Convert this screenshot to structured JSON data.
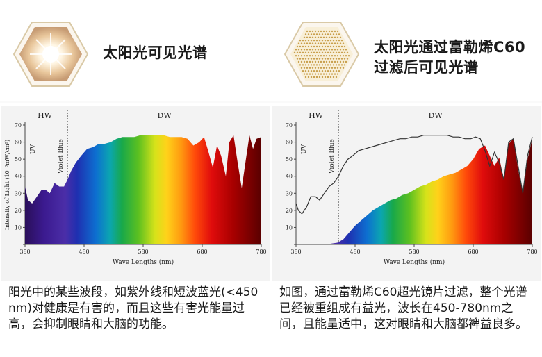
{
  "panels": [
    {
      "title_lines": [
        "太阳光可见光谱"
      ],
      "description": "阳光中的某些波段，如紫外线和短波蓝光(<450 nm)对健康是有害的，而且这些有害光能量过高，会抑制眼睛和大脑的功能。"
    },
    {
      "title_lines": [
        "太阳光通过富勒烯C60",
        "过滤后可见光谱"
      ],
      "description": "如图，通过富勒烯C60超光镜片过滤，整个光谱已经被重组成有益光，波长在450-780nm之间，且能量适中，这对眼睛和大脑都裨益良多。"
    }
  ],
  "colors": {
    "frame": "#d9c9a6",
    "chart_bg": "#f3f3f3",
    "uv_violet": "#3a1d8a",
    "red": "#8b0000"
  },
  "chart_data": [
    {
      "type": "area",
      "xlabel": "Wave Lengths (nm)",
      "ylabel": "Intensity of Light (10⁻³mW/cm²)",
      "xlim": [
        380,
        780
      ],
      "ylim": [
        0,
        70
      ],
      "x_ticks": [
        380,
        480,
        580,
        680,
        780
      ],
      "y_ticks": [
        0,
        10,
        20,
        30,
        40,
        50,
        60,
        70
      ],
      "region_labels": [
        "HW",
        "DW"
      ],
      "annotations": [
        "UV",
        "Violet Blue"
      ],
      "divider_x": 452,
      "series": [
        {
          "x": [
            380,
            385,
            392,
            400,
            408,
            415,
            422,
            430,
            438,
            446,
            452,
            458,
            466,
            475,
            485,
            495,
            505,
            515,
            525,
            535,
            545,
            555,
            565,
            575,
            585,
            595,
            605,
            615,
            625,
            635,
            645,
            655,
            665,
            675,
            683,
            690,
            698,
            705,
            712,
            720,
            726,
            733,
            740,
            747,
            754,
            760,
            766,
            772,
            780
          ],
          "y": [
            34,
            26,
            24,
            28,
            32,
            32,
            30,
            36,
            34,
            34,
            38,
            43,
            48,
            52,
            56,
            57,
            59,
            59,
            60,
            62,
            63,
            63,
            63,
            64,
            64,
            64,
            64,
            64,
            63,
            63,
            63,
            62,
            58,
            60,
            63,
            55,
            45,
            58,
            52,
            40,
            60,
            64,
            48,
            33,
            50,
            64,
            56,
            62,
            63
          ]
        }
      ]
    },
    {
      "type": "area",
      "xlabel": "Wave Lengths (nm)",
      "xlim": [
        380,
        780
      ],
      "ylim": [
        0,
        70
      ],
      "x_ticks": [
        380,
        480,
        580,
        680,
        780
      ],
      "y_ticks": [
        0,
        10,
        20,
        30,
        40,
        50,
        60,
        70
      ],
      "region_labels": [
        "HW",
        "DW"
      ],
      "annotations": [
        "UV",
        "Violet Blue"
      ],
      "divider_x": 452,
      "series": [
        {
          "x": [
            380,
            384,
            390,
            398,
            405,
            413,
            420,
            428,
            436,
            444,
            452,
            460,
            468,
            476,
            486,
            496,
            506,
            516,
            526,
            536,
            546,
            556,
            566,
            576,
            586,
            596,
            606,
            616,
            626,
            636,
            646,
            656,
            666,
            676,
            684,
            692,
            700,
            708,
            716,
            724,
            732,
            740,
            748,
            756,
            764,
            772,
            780
          ],
          "y": [
            24,
            20,
            18,
            22,
            28,
            28,
            26,
            30,
            34,
            36,
            40,
            46,
            50,
            52,
            55,
            56,
            57,
            58,
            59,
            60,
            61,
            62,
            62,
            63,
            63,
            64,
            64,
            64,
            64,
            64,
            63,
            63,
            62,
            62,
            63,
            62,
            55,
            46,
            54,
            48,
            38,
            60,
            62,
            46,
            30,
            52,
            63
          ]
        },
        {
          "x": [
            380,
            420,
            432,
            440,
            450,
            460,
            470,
            480,
            490,
            500,
            510,
            520,
            530,
            540,
            550,
            560,
            570,
            580,
            590,
            600,
            610,
            620,
            630,
            640,
            650,
            660,
            670,
            680,
            690,
            700,
            708,
            716,
            724,
            732,
            740,
            748,
            756,
            764,
            772,
            780
          ],
          "y": [
            0,
            0,
            0,
            0.5,
            1,
            3,
            7,
            11,
            14,
            17,
            20,
            22,
            24,
            26,
            27,
            29,
            30,
            32,
            34,
            35,
            37,
            38,
            40,
            41,
            42,
            44,
            46,
            50,
            56,
            58,
            52,
            46,
            51,
            38,
            59,
            62,
            44,
            30,
            50,
            62
          ]
        }
      ]
    }
  ]
}
